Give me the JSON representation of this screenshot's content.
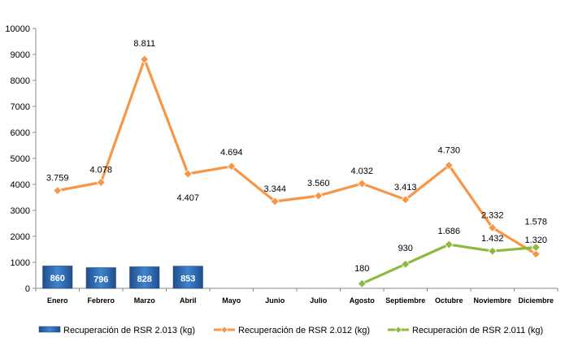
{
  "chart_data": {
    "type": "bar+line",
    "categories": [
      "Enero",
      "Febrero",
      "Marzo",
      "Abril",
      "Mayo",
      "Junio",
      "Julio",
      "Agosto",
      "Septiembre",
      "Octubre",
      "Noviembre",
      "Diciembre"
    ],
    "ylim": [
      0,
      10000
    ],
    "yticks": [
      0,
      1000,
      2000,
      3000,
      4000,
      5000,
      6000,
      7000,
      8000,
      9000,
      10000
    ],
    "yticklabels": [
      "0",
      "1000",
      "2000",
      "3000",
      "4000",
      "5000",
      "6000",
      "7000",
      "8000",
      "9000",
      "10000"
    ],
    "grid": false,
    "legend_position": "bottom",
    "series": [
      {
        "name": "Recuperación de RSR 2.013 (kg)",
        "kind": "bar",
        "color": "#2e6db4",
        "values": [
          860,
          796,
          828,
          853,
          null,
          null,
          null,
          null,
          null,
          null,
          null,
          null
        ],
        "labels": [
          "860",
          "796",
          "828",
          "853",
          "",
          "",
          "",
          "",
          "",
          "",
          "",
          ""
        ]
      },
      {
        "name": "Recuperación de RSR 2.012 (kg)",
        "kind": "line",
        "color": "#f79646",
        "marker": "diamond",
        "values": [
          3759,
          4078,
          8811,
          4407,
          4694,
          3344,
          3560,
          4032,
          3413,
          4730,
          2332,
          1320
        ],
        "labels": [
          "3.759",
          "4.078",
          "8.811",
          "4.407",
          "4.694",
          "3.344",
          "3.560",
          "4.032",
          "3.413",
          "4.730",
          "2.332",
          "1.320"
        ]
      },
      {
        "name": "Recuperación de RSR 2.011 (kg)",
        "kind": "line",
        "color": "#8cba3c",
        "marker": "diamond",
        "values": [
          null,
          null,
          null,
          null,
          null,
          null,
          null,
          180,
          930,
          1686,
          1432,
          1578
        ],
        "labels": [
          "",
          "",
          "",
          "",
          "",
          "",
          "",
          "180",
          "930",
          "1.686",
          "1.432",
          "1.578"
        ]
      }
    ]
  }
}
